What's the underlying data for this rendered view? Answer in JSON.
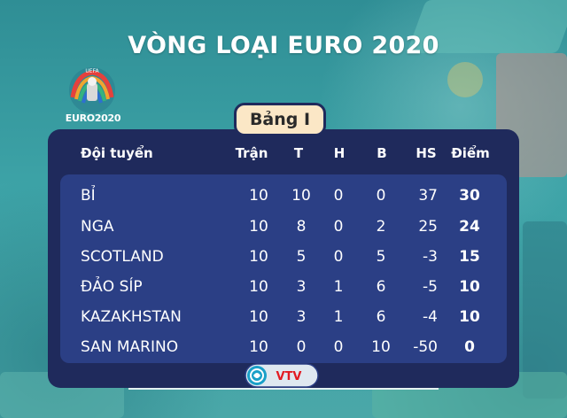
{
  "title": "VÒNG LOẠI EURO 2020",
  "logo": {
    "text": "EURO2020",
    "small_text": "UEFA"
  },
  "group": "Bảng I",
  "columns": {
    "team": "Đội tuyển",
    "played": "Trận",
    "won": "T",
    "drawn": "H",
    "lost": "B",
    "goal_diff": "HS",
    "points": "Điểm"
  },
  "rows": [
    {
      "team": "BỈ",
      "played": "10",
      "won": "10",
      "drawn": "0",
      "lost": "0",
      "goal_diff": "37",
      "points": "30"
    },
    {
      "team": "NGA",
      "played": "10",
      "won": "8",
      "drawn": "0",
      "lost": "2",
      "goal_diff": "25",
      "points": "24"
    },
    {
      "team": "SCOTLAND",
      "played": "10",
      "won": "5",
      "drawn": "0",
      "lost": "5",
      "goal_diff": "-3",
      "points": "15"
    },
    {
      "team": "ĐẢO SÍP",
      "played": "10",
      "won": "3",
      "drawn": "1",
      "lost": "6",
      "goal_diff": "-5",
      "points": "10"
    },
    {
      "team": "KAZAKHSTAN",
      "played": "10",
      "won": "3",
      "drawn": "1",
      "lost": "6",
      "goal_diff": "-4",
      "points": "10"
    },
    {
      "team": "SAN MARINO",
      "played": "10",
      "won": "0",
      "drawn": "0",
      "lost": "10",
      "goal_diff": "-50",
      "points": "0"
    }
  ],
  "brand": {
    "text": "VTV",
    "icon": "vtv-sports-logo-icon"
  },
  "colors": {
    "panel": "#1f2a5c",
    "panel_inner": "#2b3f85",
    "badge": "#fbe7c6",
    "brand_red": "#e21b23"
  }
}
